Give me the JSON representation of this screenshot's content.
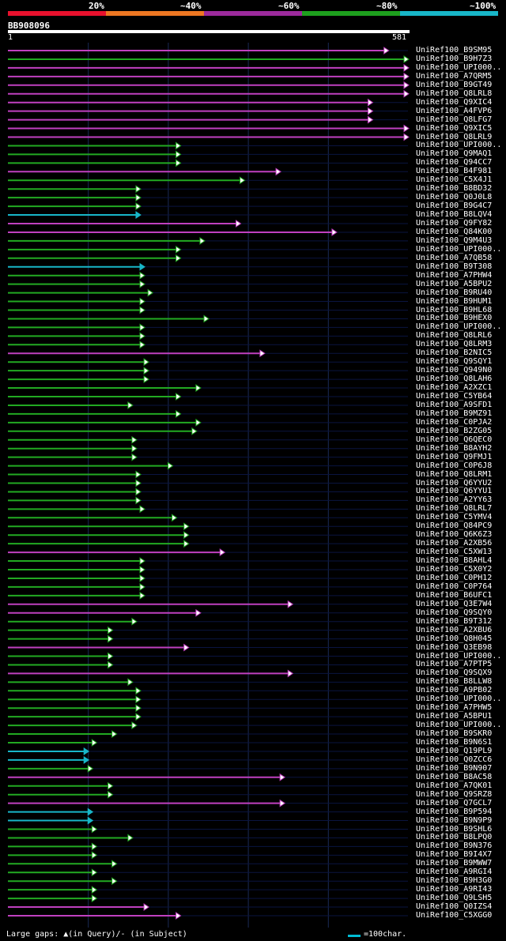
{
  "legend": {
    "labels": [
      "20%",
      "~40%",
      "~60%",
      "~80%",
      "~100%"
    ],
    "colors": [
      "#e8112d",
      "#ee7722",
      "#9c2a9c",
      "#1ea01e",
      "#18b6c8"
    ]
  },
  "query_id": "BB908096",
  "ruler": {
    "start": "1",
    "end": "581"
  },
  "footer_text": "Large gaps: ▲(in Query)/- (in Subject)",
  "scale_text": "=100char.",
  "query_length": 581,
  "hits": [
    {
      "name": "UniRef100_B9SM95",
      "end": 0.95,
      "color": "#c040c0"
    },
    {
      "name": "UniRef100_B9H7Z3",
      "end": 1.0,
      "color": "#22aa22"
    },
    {
      "name": "UniRef100_UPI000..",
      "end": 1.0,
      "color": "#c040c0"
    },
    {
      "name": "UniRef100_A7QRM5",
      "end": 1.0,
      "color": "#c040c0"
    },
    {
      "name": "UniRef100_B9GT49",
      "end": 1.0,
      "color": "#c040c0"
    },
    {
      "name": "UniRef100_Q8LRL8",
      "end": 1.0,
      "color": "#c040c0"
    },
    {
      "name": "UniRef100_Q9XIC4",
      "end": 0.91,
      "color": "#c040c0"
    },
    {
      "name": "UniRef100_A4FVP6",
      "end": 0.91,
      "color": "#c040c0"
    },
    {
      "name": "UniRef100_Q8LFG7",
      "end": 0.91,
      "color": "#c040c0"
    },
    {
      "name": "UniRef100_Q9XIC5",
      "end": 1.0,
      "color": "#c040c0"
    },
    {
      "name": "UniRef100_Q8LRL9",
      "end": 1.0,
      "color": "#c040c0"
    },
    {
      "name": "UniRef100_UPI000..",
      "end": 0.43,
      "color": "#22aa22"
    },
    {
      "name": "UniRef100_Q9MAQ1",
      "end": 0.43,
      "color": "#22aa22"
    },
    {
      "name": "UniRef100_Q94CC7",
      "end": 0.43,
      "color": "#22aa22"
    },
    {
      "name": "UniRef100_B4F981",
      "end": 0.68,
      "color": "#c040c0"
    },
    {
      "name": "UniRef100_C5X4J1",
      "end": 0.59,
      "color": "#22aa22"
    },
    {
      "name": "UniRef100_B8BD32",
      "end": 0.33,
      "color": "#22aa22"
    },
    {
      "name": "UniRef100_Q0J0L8",
      "end": 0.33,
      "color": "#22aa22"
    },
    {
      "name": "UniRef100_B9G4C7",
      "end": 0.33,
      "color": "#22aa22"
    },
    {
      "name": "UniRef100_B8LQV4",
      "end": 0.33,
      "color": "#18b6c8"
    },
    {
      "name": "UniRef100_Q9FY82",
      "end": 0.58,
      "color": "#c040c0"
    },
    {
      "name": "UniRef100_Q84K00",
      "end": 0.82,
      "color": "#c040c0"
    },
    {
      "name": "UniRef100_Q9M4U3",
      "end": 0.49,
      "color": "#22aa22"
    },
    {
      "name": "UniRef100_UPI000..",
      "end": 0.43,
      "color": "#22aa22"
    },
    {
      "name": "UniRef100_A7QB58",
      "end": 0.43,
      "color": "#22aa22"
    },
    {
      "name": "UniRef100_B9T308",
      "end": 0.34,
      "color": "#18b6c8"
    },
    {
      "name": "UniRef100_A7PHW4",
      "end": 0.34,
      "color": "#22aa22"
    },
    {
      "name": "UniRef100_A5BPU2",
      "end": 0.34,
      "color": "#22aa22"
    },
    {
      "name": "UniRef100_B9RU40",
      "end": 0.36,
      "color": "#22aa22"
    },
    {
      "name": "UniRef100_B9HUM1",
      "end": 0.34,
      "color": "#22aa22"
    },
    {
      "name": "UniRef100_B9HL68",
      "end": 0.34,
      "color": "#22aa22"
    },
    {
      "name": "UniRef100_B9HEX0",
      "end": 0.5,
      "color": "#22aa22"
    },
    {
      "name": "UniRef100_UPI000..",
      "end": 0.34,
      "color": "#22aa22"
    },
    {
      "name": "UniRef100_Q8LRL6",
      "end": 0.34,
      "color": "#22aa22"
    },
    {
      "name": "UniRef100_Q8LRM3",
      "end": 0.34,
      "color": "#22aa22"
    },
    {
      "name": "UniRef100_B2NIC5",
      "end": 0.64,
      "color": "#c040c0"
    },
    {
      "name": "UniRef100_Q9SQY1",
      "end": 0.35,
      "color": "#22aa22"
    },
    {
      "name": "UniRef100_Q949N0",
      "end": 0.35,
      "color": "#22aa22"
    },
    {
      "name": "UniRef100_Q8LAH6",
      "end": 0.35,
      "color": "#22aa22"
    },
    {
      "name": "UniRef100_A2XZC1",
      "end": 0.48,
      "color": "#22aa22"
    },
    {
      "name": "UniRef100_C5YB64",
      "end": 0.43,
      "color": "#22aa22"
    },
    {
      "name": "UniRef100_A9SFD1",
      "end": 0.31,
      "color": "#22aa22"
    },
    {
      "name": "UniRef100_B9MZ91",
      "end": 0.43,
      "color": "#22aa22"
    },
    {
      "name": "UniRef100_C0PJA2",
      "end": 0.48,
      "color": "#22aa22"
    },
    {
      "name": "UniRef100_B2ZG05",
      "end": 0.47,
      "color": "#22aa22"
    },
    {
      "name": "UniRef100_Q6QEC0",
      "end": 0.32,
      "color": "#22aa22"
    },
    {
      "name": "UniRef100_B8AYH2",
      "end": 0.32,
      "color": "#22aa22"
    },
    {
      "name": "UniRef100_Q9FMJ1",
      "end": 0.32,
      "color": "#22aa22"
    },
    {
      "name": "UniRef100_C0P6J8",
      "end": 0.41,
      "color": "#22aa22"
    },
    {
      "name": "UniRef100_Q8LRM1",
      "end": 0.33,
      "color": "#22aa22"
    },
    {
      "name": "UniRef100_Q6YYU2",
      "end": 0.33,
      "color": "#22aa22"
    },
    {
      "name": "UniRef100_Q6YYU1",
      "end": 0.33,
      "color": "#22aa22"
    },
    {
      "name": "UniRef100_A2YY63",
      "end": 0.33,
      "color": "#22aa22"
    },
    {
      "name": "UniRef100_Q8LRL7",
      "end": 0.34,
      "color": "#22aa22"
    },
    {
      "name": "UniRef100_C5YMV4",
      "end": 0.42,
      "color": "#22aa22"
    },
    {
      "name": "UniRef100_Q84PC9",
      "end": 0.45,
      "color": "#22aa22"
    },
    {
      "name": "UniRef100_Q6K6Z3",
      "end": 0.45,
      "color": "#22aa22"
    },
    {
      "name": "UniRef100_A2XB56",
      "end": 0.45,
      "color": "#22aa22"
    },
    {
      "name": "UniRef100_C5XW13",
      "end": 0.54,
      "color": "#c040c0"
    },
    {
      "name": "UniRef100_B8AHL4",
      "end": 0.34,
      "color": "#22aa22"
    },
    {
      "name": "UniRef100_C5X0Y2",
      "end": 0.34,
      "color": "#22aa22"
    },
    {
      "name": "UniRef100_C0PH12",
      "end": 0.34,
      "color": "#22aa22"
    },
    {
      "name": "UniRef100_C0P764",
      "end": 0.34,
      "color": "#22aa22"
    },
    {
      "name": "UniRef100_B6UFC1",
      "end": 0.34,
      "color": "#22aa22"
    },
    {
      "name": "UniRef100_Q3E7W4",
      "end": 0.71,
      "color": "#c040c0"
    },
    {
      "name": "UniRef100_Q9SQY0",
      "end": 0.48,
      "color": "#c040c0"
    },
    {
      "name": "UniRef100_B9T312",
      "end": 0.32,
      "color": "#22aa22"
    },
    {
      "name": "UniRef100_A2XBU6",
      "end": 0.26,
      "color": "#22aa22"
    },
    {
      "name": "UniRef100_Q8H045",
      "end": 0.26,
      "color": "#22aa22"
    },
    {
      "name": "UniRef100_Q3EB98",
      "end": 0.45,
      "color": "#c040c0"
    },
    {
      "name": "UniRef100_UPI000..",
      "end": 0.26,
      "color": "#22aa22"
    },
    {
      "name": "UniRef100_A7PTP5",
      "end": 0.26,
      "color": "#22aa22"
    },
    {
      "name": "UniRef100_Q9SQX9",
      "end": 0.71,
      "color": "#c040c0"
    },
    {
      "name": "UniRef100_B8LLW8",
      "end": 0.31,
      "color": "#22aa22"
    },
    {
      "name": "UniRef100_A9PB02",
      "end": 0.33,
      "color": "#22aa22"
    },
    {
      "name": "UniRef100_UPI000..",
      "end": 0.33,
      "color": "#22aa22"
    },
    {
      "name": "UniRef100_A7PHW5",
      "end": 0.33,
      "color": "#22aa22"
    },
    {
      "name": "UniRef100_A5BPU1",
      "end": 0.33,
      "color": "#22aa22"
    },
    {
      "name": "UniRef100_UPI000..",
      "end": 0.32,
      "color": "#22aa22"
    },
    {
      "name": "UniRef100_B9SKR0",
      "end": 0.27,
      "color": "#22aa22"
    },
    {
      "name": "UniRef100_B9N6S1",
      "end": 0.22,
      "color": "#22aa22"
    },
    {
      "name": "UniRef100_Q19PL9",
      "end": 0.2,
      "color": "#18b6c8"
    },
    {
      "name": "UniRef100_Q0ZCC6",
      "end": 0.2,
      "color": "#18b6c8"
    },
    {
      "name": "UniRef100_B9N907",
      "end": 0.21,
      "color": "#22aa22"
    },
    {
      "name": "UniRef100_B8AC58",
      "end": 0.69,
      "color": "#c040c0"
    },
    {
      "name": "UniRef100_A7QK01",
      "end": 0.26,
      "color": "#22aa22"
    },
    {
      "name": "UniRef100_Q9SRZ8",
      "end": 0.26,
      "color": "#22aa22"
    },
    {
      "name": "UniRef100_Q7GCL7",
      "end": 0.69,
      "color": "#c040c0"
    },
    {
      "name": "UniRef100_B9P594",
      "end": 0.21,
      "color": "#18b6c8"
    },
    {
      "name": "UniRef100_B9N9P9",
      "end": 0.21,
      "color": "#18b6c8"
    },
    {
      "name": "UniRef100_B9SHL6",
      "end": 0.22,
      "color": "#22aa22"
    },
    {
      "name": "UniRef100_B8LPQ0",
      "end": 0.31,
      "color": "#22aa22"
    },
    {
      "name": "UniRef100_B9N376",
      "end": 0.22,
      "color": "#22aa22"
    },
    {
      "name": "UniRef100_B9I4X7",
      "end": 0.22,
      "color": "#22aa22"
    },
    {
      "name": "UniRef100_B9MWW7",
      "end": 0.27,
      "color": "#22aa22"
    },
    {
      "name": "UniRef100_A9RGI4",
      "end": 0.22,
      "color": "#22aa22"
    },
    {
      "name": "UniRef100_B9H3G0",
      "end": 0.27,
      "color": "#22aa22"
    },
    {
      "name": "UniRef100_A9RI43",
      "end": 0.22,
      "color": "#22aa22"
    },
    {
      "name": "UniRef100_Q9LSH5",
      "end": 0.22,
      "color": "#22aa22"
    },
    {
      "name": "UniRef100_Q0IZS4",
      "end": 0.35,
      "color": "#c040c0"
    },
    {
      "name": "UniRef100_C5XGG0",
      "end": 0.43,
      "color": "#c040c0"
    }
  ]
}
